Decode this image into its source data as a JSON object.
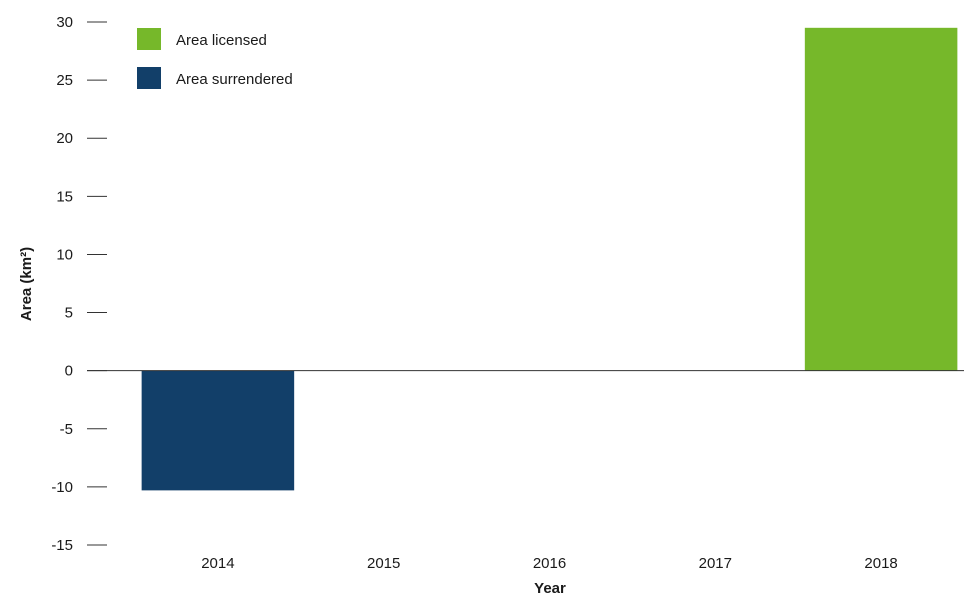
{
  "chart_data": {
    "type": "bar",
    "categories": [
      "2014",
      "2015",
      "2016",
      "2017",
      "2018"
    ],
    "series": [
      {
        "name": "Area licensed",
        "color": "#76b82a",
        "values": [
          0,
          0,
          0,
          0,
          29.5
        ]
      },
      {
        "name": "Area surrendered",
        "color": "#123f69",
        "values": [
          -10.3,
          0,
          0,
          0,
          0
        ]
      }
    ],
    "xlabel": "Year",
    "ylabel": "Area (km²)",
    "ylim": [
      -15,
      30
    ],
    "yticks": [
      "-15",
      "-10",
      "-5",
      "0",
      "5",
      "10",
      "15",
      "20",
      "25",
      "30"
    ],
    "grid": false,
    "legend": "top-left"
  }
}
